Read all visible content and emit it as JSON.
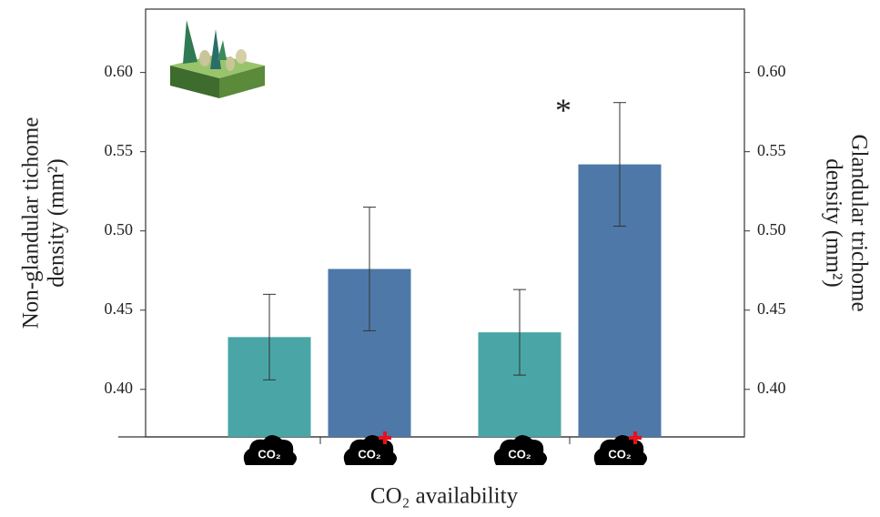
{
  "chart_data": {
    "type": "bar",
    "xlabel": "CO₂ availability",
    "ylabel": [
      "Non-glandular tichome",
      "density (mm²)"
    ],
    "y2label": [
      "Glandular trichome",
      "density (mm²)"
    ],
    "categories": [
      "CO₂",
      "CO₂",
      "CO₂",
      "CO₂"
    ],
    "values": [
      0.433,
      0.476,
      0.436,
      0.542
    ],
    "errors": [
      0.027,
      0.039,
      0.027,
      0.039
    ],
    "colors": [
      "#4aa6a6",
      "#4e78a8",
      "#4aa6a6",
      "#4e78a8"
    ],
    "axis": [
      "y",
      "y",
      "y2",
      "y2"
    ],
    "annotation": "*",
    "ylim": [
      0.37,
      0.64
    ],
    "yticks": [
      {
        "value": 0.4,
        "label": "0.40"
      },
      {
        "value": 0.45,
        "label": "0.45"
      },
      {
        "value": 0.5,
        "label": "0.50"
      },
      {
        "value": 0.55,
        "label": "0.55"
      },
      {
        "value": 0.6,
        "label": "0.60"
      }
    ],
    "y2lim": [
      0.37,
      0.64
    ],
    "y2ticks": [
      {
        "value": 0.4,
        "label": "0.40"
      },
      {
        "value": 0.45,
        "label": "0.45"
      },
      {
        "value": 0.5,
        "label": "0.50"
      },
      {
        "value": 0.55,
        "label": "0.55"
      },
      {
        "value": 0.6,
        "label": "0.60"
      }
    ]
  }
}
